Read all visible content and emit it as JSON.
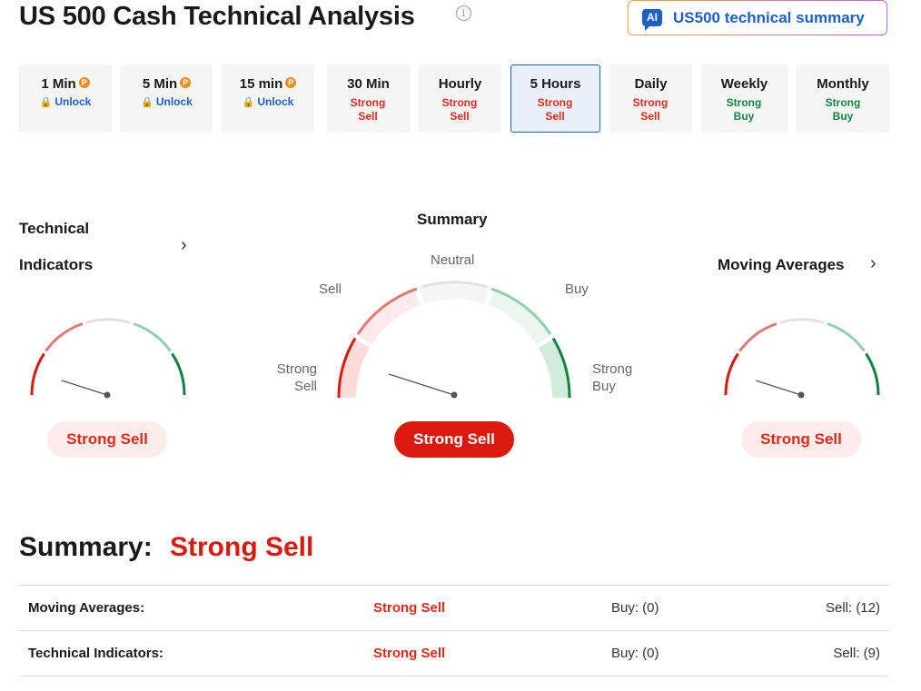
{
  "header": {
    "title": "US 500 Cash Technical Analysis",
    "info_icon": "info-icon",
    "ai_badge": "AI",
    "ai_button_label": "US500 technical summary"
  },
  "timeframes": [
    {
      "name": "1 Min",
      "status": "Unlock",
      "locked": true
    },
    {
      "name": "5 Min",
      "status": "Unlock",
      "locked": true
    },
    {
      "name": "15 min",
      "status": "Unlock",
      "locked": true
    },
    {
      "name": "30 Min",
      "status": "Strong Sell",
      "locked": false
    },
    {
      "name": "Hourly",
      "status": "Strong Sell",
      "locked": false
    },
    {
      "name": "5 Hours",
      "status": "Strong Sell",
      "locked": false,
      "active": true
    },
    {
      "name": "Daily",
      "status": "Strong Sell",
      "locked": false
    },
    {
      "name": "Weekly",
      "status": "Strong Buy",
      "locked": false
    },
    {
      "name": "Monthly",
      "status": "Strong Buy",
      "locked": false
    }
  ],
  "pro_badge": "P",
  "gauges": {
    "technical_indicators": {
      "title_line1": "Technical",
      "title_line2": "Indicators",
      "result": "Strong Sell"
    },
    "summary": {
      "title": "Summary",
      "result": "Strong Sell",
      "labels": {
        "strong_sell_1": "Strong",
        "strong_sell_2": "Sell",
        "sell": "Sell",
        "neutral": "Neutral",
        "buy": "Buy",
        "strong_buy_1": "Strong",
        "strong_buy_2": "Buy"
      }
    },
    "moving_averages": {
      "title": "Moving Averages",
      "result": "Strong Sell"
    }
  },
  "summary": {
    "label": "Summary:",
    "value": "Strong Sell",
    "rows": [
      {
        "name": "Moving Averages:",
        "status": "Strong Sell",
        "buy": "Buy: (0)",
        "sell": "Sell: (12)"
      },
      {
        "name": "Technical Indicators:",
        "status": "Strong Sell",
        "buy": "Buy: (0)",
        "sell": "Sell: (9)"
      }
    ]
  },
  "colors": {
    "strong_sell": "#da1a0c",
    "sell": "#e07a72",
    "neutral": "#e2e2e2",
    "buy": "#8fd1a8",
    "strong_buy": "#138241",
    "accent": "#1d5fc5"
  }
}
